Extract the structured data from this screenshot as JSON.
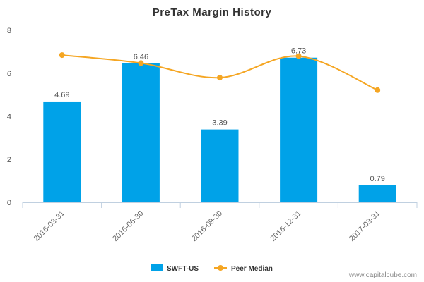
{
  "chart_data": {
    "type": "bar",
    "title": "PreTax Margin History",
    "categories": [
      "2016-03-31",
      "2016-06-30",
      "2016-09-30",
      "2016-12-31",
      "2017-03-31"
    ],
    "series": [
      {
        "name": "SWFT-US",
        "kind": "bar",
        "color": "#00A2E8",
        "values": [
          4.69,
          6.46,
          3.39,
          6.73,
          0.79
        ],
        "labels": [
          "4.69",
          "6.46",
          "3.39",
          "6.73",
          "0.79"
        ]
      },
      {
        "name": "Peer Median",
        "kind": "line",
        "color": "#F5A623",
        "values": [
          6.85,
          6.48,
          5.8,
          6.8,
          5.22
        ]
      }
    ],
    "ylim": [
      0,
      8
    ],
    "yticks": [
      "0",
      "2",
      "4",
      "6",
      "8"
    ],
    "legend": "bottom-center",
    "grid": false
  },
  "watermark": "www.capitalcube.com"
}
